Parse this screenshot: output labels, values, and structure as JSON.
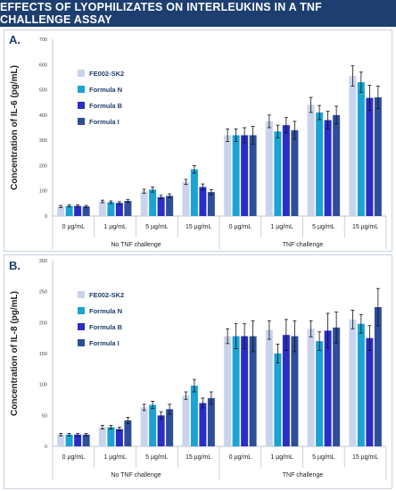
{
  "title": "EFFECTS OF LYOPHILIZATES ON INTERLEUKINS IN A TNF CHALLENGE ASSAY",
  "colors": {
    "title_bg": "#1d3e6e",
    "series": [
      "#c9d4ec",
      "#1aa3d3",
      "#2a2ec4",
      "#2e4e9a"
    ]
  },
  "chart_data": [
    {
      "type": "bar",
      "panel": "A.",
      "ylabel": "Concentration of IL-6 (pg/mL)",
      "ylim": [
        0,
        700
      ],
      "yticks": [
        0,
        100,
        200,
        300,
        400,
        500,
        600,
        700
      ],
      "categories": [
        "0 µg/mL",
        "1 µg/mL",
        "5 µg/mL",
        "15 µg/mL",
        "0 µg/mL",
        "1 µg/mL",
        "5 µg/mL",
        "15 µg/mL"
      ],
      "groups": [
        {
          "label": "No TNF challenge",
          "categories": [
            0,
            1,
            2,
            3
          ]
        },
        {
          "label": "TNF challenge",
          "categories": [
            4,
            5,
            6,
            7
          ]
        }
      ],
      "legend_position": "top-left",
      "series": [
        {
          "name": "FE002-SK2",
          "values": [
            38,
            58,
            98,
            135,
            320,
            375,
            440,
            555
          ],
          "errors": [
            4,
            5,
            8,
            10,
            25,
            25,
            30,
            40
          ]
        },
        {
          "name": "Formula N",
          "values": [
            40,
            55,
            105,
            185,
            320,
            335,
            410,
            530
          ],
          "errors": [
            4,
            5,
            10,
            15,
            25,
            25,
            28,
            40
          ]
        },
        {
          "name": "Formula B",
          "values": [
            40,
            52,
            75,
            115,
            320,
            360,
            380,
            468
          ],
          "errors": [
            4,
            5,
            7,
            12,
            30,
            30,
            35,
            50
          ]
        },
        {
          "name": "Formula I",
          "values": [
            38,
            60,
            80,
            95,
            320,
            340,
            400,
            470
          ],
          "errors": [
            4,
            5,
            8,
            10,
            35,
            35,
            35,
            45
          ]
        }
      ]
    },
    {
      "type": "bar",
      "panel": "B.",
      "ylabel": "Concentration of IL-8 (pg/mL)",
      "ylim": [
        0,
        300
      ],
      "yticks": [
        0,
        50,
        100,
        150,
        200,
        250,
        300
      ],
      "categories": [
        "0 µg/mL",
        "1 µg/mL",
        "5 µg/mL",
        "15 µg/mL",
        "0 µg/mL",
        "1 µg/mL",
        "5 µg/mL",
        "15 µg/mL"
      ],
      "groups": [
        {
          "label": "No TNF challenge",
          "categories": [
            0,
            1,
            2,
            3
          ]
        },
        {
          "label": "TNF challenge",
          "categories": [
            4,
            5,
            6,
            7
          ]
        }
      ],
      "legend_position": "top-left",
      "series": [
        {
          "name": "FE002-SK2",
          "values": [
            19,
            31,
            63,
            82,
            178,
            188,
            190,
            205
          ],
          "errors": [
            2,
            3,
            5,
            6,
            12,
            15,
            13,
            15
          ]
        },
        {
          "name": "Formula N",
          "values": [
            19,
            31,
            67,
            98,
            178,
            150,
            170,
            198
          ],
          "errors": [
            2,
            3,
            6,
            10,
            20,
            15,
            15,
            15
          ]
        },
        {
          "name": "Formula B",
          "values": [
            19,
            28,
            50,
            70,
            178,
            180,
            187,
            175
          ],
          "errors": [
            2,
            3,
            6,
            8,
            20,
            25,
            28,
            20
          ]
        },
        {
          "name": "Formula I",
          "values": [
            19,
            42,
            60,
            78,
            178,
            178,
            192,
            225
          ],
          "errors": [
            2,
            5,
            8,
            10,
            25,
            25,
            25,
            30
          ]
        }
      ]
    }
  ]
}
